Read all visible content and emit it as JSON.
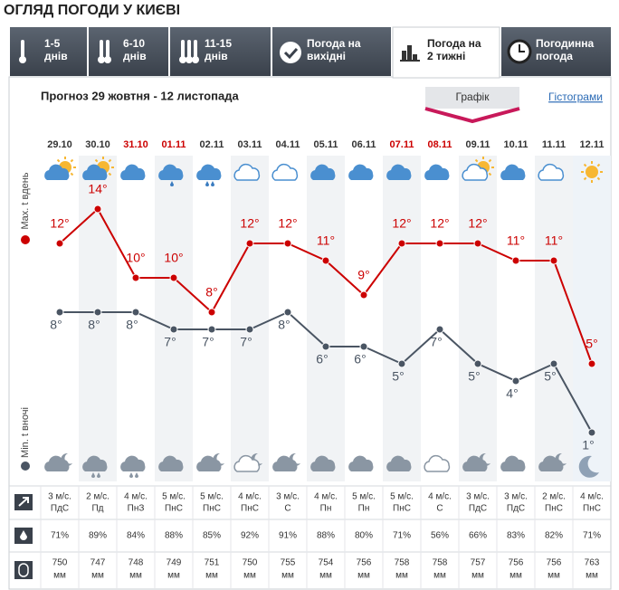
{
  "header": {
    "title": "ОГЛЯД ПОГОДИ У КИЄВІ"
  },
  "tabs": [
    {
      "lines": [
        "1-5",
        "днів"
      ]
    },
    {
      "lines": [
        "6-10",
        "днів"
      ]
    },
    {
      "lines": [
        "11-15",
        "днів"
      ]
    },
    {
      "lines": [
        "Погода на",
        "вихідні"
      ]
    },
    {
      "lines": [
        "Погода на",
        "2 тижні"
      ]
    },
    {
      "lines": [
        "Погодинна",
        "погода"
      ]
    }
  ],
  "subtitle": "Прогноз 29 жовтня - 12 листопада",
  "view_buttons": [
    "Графік",
    "Гістограми"
  ],
  "chart_data": {
    "type": "line",
    "x": [
      "29.10",
      "30.10",
      "31.10",
      "01.11",
      "02.11",
      "03.11",
      "04.11",
      "05.11",
      "06.11",
      "07.11",
      "08.11",
      "09.11",
      "10.11",
      "11.11",
      "12.11"
    ],
    "x_label_colors": [
      "#333333",
      "#333333",
      "#cc0000",
      "#cc0000",
      "#333333",
      "#333333",
      "#333333",
      "#333333",
      "#333333",
      "#cc0000",
      "#cc0000",
      "#333333",
      "#333333",
      "#333333",
      "#333333"
    ],
    "series": [
      {
        "name": "Max. t вдень",
        "color": "#cc0000",
        "values": [
          12,
          14,
          10,
          10,
          8,
          12,
          12,
          11,
          9,
          12,
          12,
          12,
          11,
          11,
          5
        ],
        "value_labels": [
          "12°",
          "14°",
          "10°",
          "10°",
          "8°",
          "12°",
          "12°",
          "11°",
          "9°",
          "12°",
          "12°",
          "12°",
          "11°",
          "11°",
          "5°"
        ]
      },
      {
        "name": "Min. t вночі",
        "color": "#4a5563",
        "values": [
          8,
          8,
          8,
          7,
          7,
          7,
          8,
          6,
          6,
          5,
          7,
          5,
          4,
          5,
          1
        ],
        "value_labels": [
          "8°",
          "8°",
          "8°",
          "7°",
          "7°",
          "7°",
          "8°",
          "6°",
          "6°",
          "5°",
          "7°",
          "5°",
          "4°",
          "5°",
          "1°"
        ]
      }
    ]
  },
  "table": {
    "wind": {
      "speeds": [
        "3 м/с.",
        "2 м/с.",
        "4 м/с.",
        "5 м/с.",
        "5 м/с.",
        "4 м/с.",
        "3 м/с.",
        "4 м/с.",
        "5 м/с.",
        "5 м/с.",
        "4 м/с.",
        "3 м/с.",
        "3 м/с.",
        "2 м/с.",
        "4 м/с."
      ],
      "directions": [
        "ПдС",
        "Пд",
        "ПнЗ",
        "ПнС",
        "ПнС",
        "ПнС",
        "С",
        "Пн",
        "Пн",
        "ПнС",
        "С",
        "ПдС",
        "ПдС",
        "ПнС",
        "ПнС"
      ]
    },
    "humidity": [
      "71%",
      "89%",
      "84%",
      "88%",
      "85%",
      "92%",
      "91%",
      "88%",
      "80%",
      "71%",
      "56%",
      "66%",
      "83%",
      "82%",
      "71%"
    ],
    "pressure": {
      "values": [
        750,
        747,
        748,
        749,
        751,
        750,
        755,
        754,
        756,
        758,
        758,
        757,
        756,
        756,
        763
      ],
      "unit": "мм"
    }
  }
}
